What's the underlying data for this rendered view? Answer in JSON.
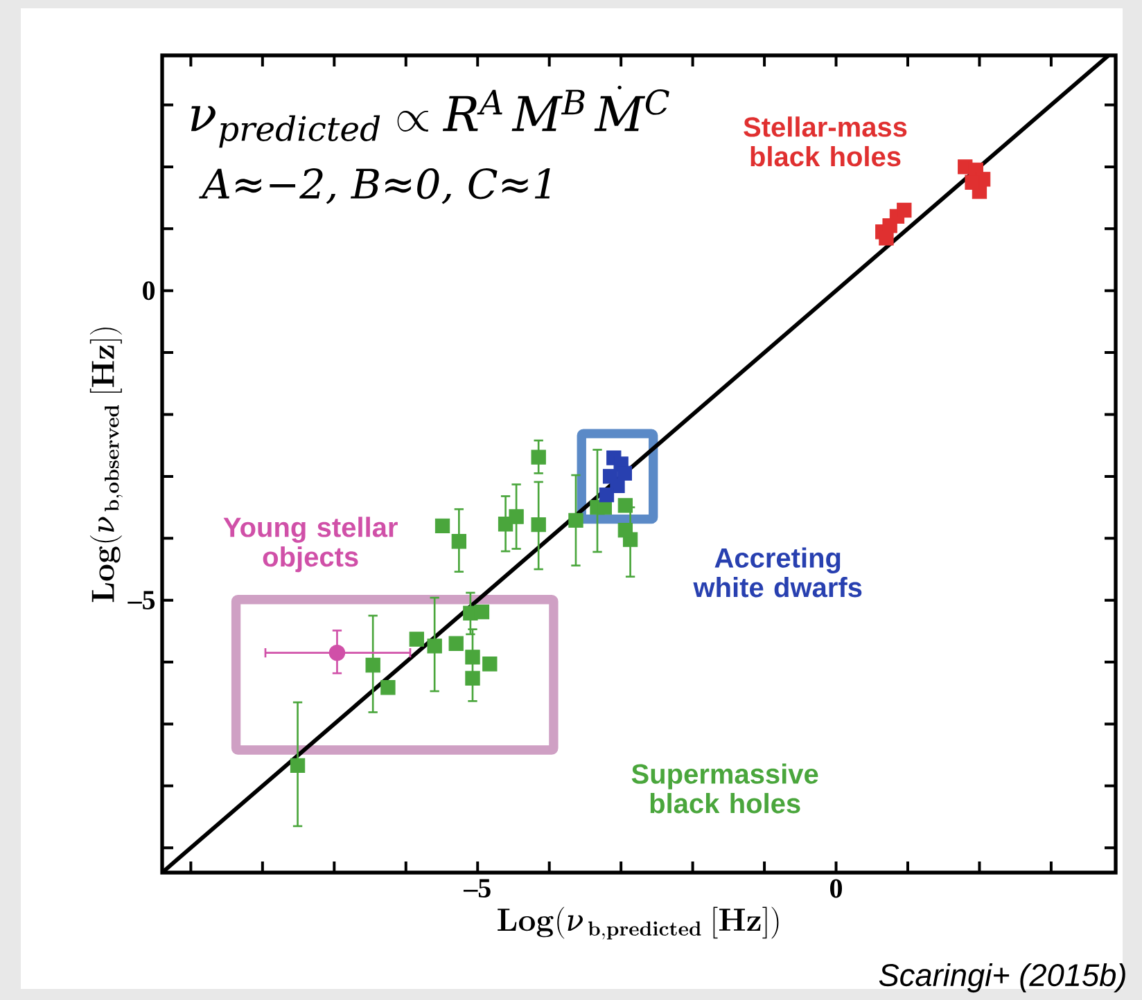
{
  "chart_data": {
    "type": "scatter",
    "xlabel": "\\mathbf{Log(}\\boldsymbol{\\nu}_{\\,\\mathbf{b,predicted}}\\ \\mathbf{[Hz])}",
    "ylabel": "\\mathbf{Log(}\\boldsymbol{\\nu}_{\\,\\mathbf{b,observed}}\\ \\mathbf{[Hz])}",
    "xlim": [
      -9.4,
      3.9
    ],
    "ylim": [
      -9.4,
      3.8
    ],
    "xticks": [
      {
        "value": -9,
        "label": null
      },
      {
        "value": -8,
        "label": null
      },
      {
        "value": -7,
        "label": null
      },
      {
        "value": -6,
        "label": null
      },
      {
        "value": -5,
        "label": "–5"
      },
      {
        "value": -4,
        "label": null
      },
      {
        "value": -3,
        "label": null
      },
      {
        "value": -2,
        "label": null
      },
      {
        "value": -1,
        "label": null
      },
      0,
      {
        "value": 1,
        "label": null
      },
      {
        "value": 2,
        "label": null
      },
      {
        "value": 3,
        "label": null
      }
    ],
    "yticks": [
      {
        "value": -9,
        "label": null
      },
      {
        "value": -8,
        "label": null
      },
      {
        "value": -7,
        "label": null
      },
      {
        "value": -6,
        "label": null
      },
      {
        "value": -5,
        "label": "–5"
      },
      {
        "value": -4,
        "label": null
      },
      {
        "value": -3,
        "label": null
      },
      {
        "value": -2,
        "label": null
      },
      {
        "value": -1,
        "label": null
      },
      0,
      {
        "value": 1,
        "label": null
      },
      {
        "value": 2,
        "label": null
      },
      {
        "value": 3,
        "label": null
      }
    ],
    "grid": false,
    "annotations": [
      "\\nu_{predicted}\\propto R^{A}\\,M^{B}\\,\\dot{M}^{C}",
      "A≈−2, B≈0, C≈1",
      "Scaringi+ (2015b)"
    ],
    "series": [
      {
        "type": "line",
        "color": "#000000",
        "x": [
          -9.4,
          3.8
        ],
        "values": [
          -9.4,
          3.8
        ]
      },
      {
        "name": "Supermassive black holes",
        "color": "#4aa63c",
        "marker": "square",
        "x": [
          -7.51,
          -6.46,
          -6.25,
          -5.85,
          -5.6,
          -5.3,
          -5.1,
          -4.94,
          -5.07,
          -5.07,
          -4.83,
          -5.49,
          -5.26,
          -4.61,
          -4.46,
          -4.15,
          -4.15,
          -3.63,
          -3.33,
          -3.23,
          -2.94,
          -2.87,
          -2.94
        ],
        "values": [
          -7.67,
          -6.05,
          -6.41,
          -5.63,
          -5.74,
          -5.7,
          -5.21,
          -5.19,
          -5.92,
          -6.26,
          -6.03,
          -3.8,
          -4.05,
          -3.77,
          -3.65,
          -2.69,
          -3.78,
          -3.71,
          -3.5,
          -3.5,
          -3.47,
          -4.02,
          -3.87
        ],
        "errors": [
          [
            -8.65,
            -6.65
          ],
          [
            -6.81,
            -5.25
          ],
          null,
          null,
          [
            -6.47,
            -4.96
          ],
          null,
          [
            -5.55,
            -4.88
          ],
          null,
          null,
          [
            -6.63,
            -5.47
          ],
          null,
          null,
          [
            -4.54,
            -3.53
          ],
          [
            -4.21,
            -3.32
          ],
          [
            -4.17,
            -3.13
          ],
          [
            -2.95,
            -2.42
          ],
          [
            -4.5,
            -3.09
          ],
          [
            -4.44,
            -2.98
          ],
          [
            -4.22,
            -2.57
          ],
          null,
          null,
          [
            -4.62,
            -3.5
          ],
          null
        ]
      },
      {
        "name": "Young stellar objects",
        "color": "#d050a8",
        "marker": "circle",
        "x": [
          -6.96
        ],
        "values": [
          -5.85
        ],
        "errors": [
          [
            -6.18,
            -5.49
          ]
        ],
        "xerrors": [
          [
            -7.96,
            -5.94
          ]
        ]
      },
      {
        "name": "Accreting white dwarfs",
        "color": "#2840b0",
        "marker": "square",
        "x": [
          -3.1,
          -3.0,
          -3.15,
          -3.05,
          -2.95,
          -3.2
        ],
        "values": [
          -2.7,
          -2.8,
          -3.0,
          -3.15,
          -2.95,
          -3.3
        ]
      },
      {
        "name": "Stellar-mass black holes",
        "color": "#e03030",
        "marker": "square",
        "x": [
          0.65,
          0.75,
          0.85,
          0.95,
          0.7,
          1.8,
          1.95,
          2.05,
          2.0,
          1.9
        ],
        "values": [
          0.95,
          1.05,
          1.2,
          1.3,
          0.85,
          2.0,
          1.95,
          1.8,
          1.6,
          1.75
        ]
      }
    ]
  }
}
